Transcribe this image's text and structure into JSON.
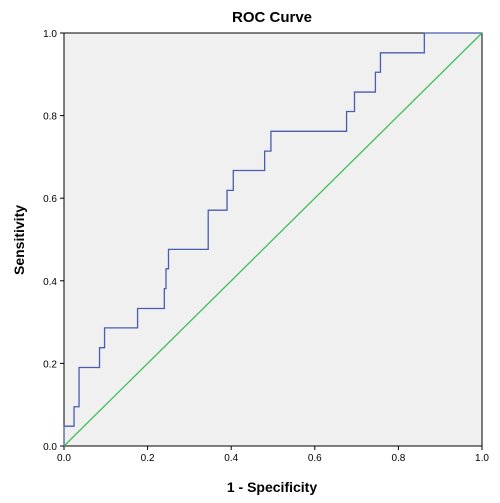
{
  "chart_data": {
    "type": "line",
    "title": "ROC Curve",
    "xlabel": "1 - Specificity",
    "ylabel": "Sensitivity",
    "xlim": [
      0,
      1
    ],
    "ylim": [
      0,
      1
    ],
    "x_ticks": [
      "0.0",
      "0.2",
      "0.4",
      "0.6",
      "0.8",
      "1.0"
    ],
    "y_ticks": [
      "0.0",
      "0.2",
      "0.4",
      "0.6",
      "0.8",
      "1.0"
    ],
    "grid": false,
    "legend": "none",
    "series": [
      {
        "color": "#4a5bb0",
        "x": [
          0.0,
          0.0,
          0.012,
          0.012,
          0.024,
          0.024,
          0.036,
          0.036,
          0.085,
          0.085,
          0.097,
          0.097,
          0.176,
          0.176,
          0.24,
          0.24,
          0.244,
          0.244,
          0.25,
          0.25,
          0.345,
          0.345,
          0.39,
          0.39,
          0.405,
          0.405,
          0.48,
          0.48,
          0.495,
          0.495,
          0.676,
          0.676,
          0.695,
          0.695,
          0.745,
          0.745,
          0.757,
          0.757,
          0.862,
          0.862,
          1.0
        ],
        "y": [
          0.0,
          0.048,
          0.048,
          0.048,
          0.048,
          0.095,
          0.095,
          0.19,
          0.19,
          0.238,
          0.238,
          0.286,
          0.286,
          0.333,
          0.333,
          0.381,
          0.381,
          0.429,
          0.429,
          0.476,
          0.476,
          0.571,
          0.571,
          0.619,
          0.619,
          0.667,
          0.667,
          0.714,
          0.714,
          0.762,
          0.762,
          0.81,
          0.81,
          0.857,
          0.857,
          0.905,
          0.905,
          0.952,
          0.952,
          1.0,
          1.0
        ]
      },
      {
        "color": "#3fbf5a",
        "x": [
          0,
          1
        ],
        "y": [
          0,
          1
        ]
      }
    ]
  },
  "colors": {
    "plot_background": "#f0f0f0",
    "frame": "#000000"
  }
}
